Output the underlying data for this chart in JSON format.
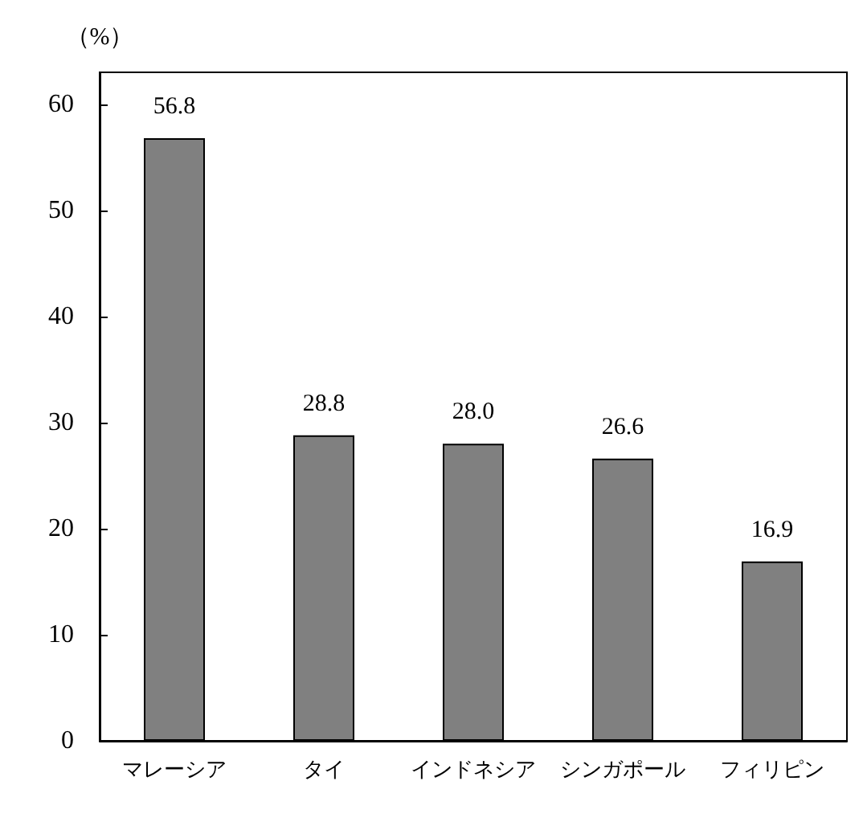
{
  "chart_data": {
    "type": "bar",
    "ylabel": "（%）",
    "categories": [
      "マレーシア",
      "タイ",
      "インドネシア",
      "シンガポール",
      "フィリピン"
    ],
    "values": [
      56.8,
      28.8,
      28.0,
      26.6,
      16.9
    ],
    "value_labels": [
      "56.8",
      "28.8",
      "28.0",
      "26.6",
      "16.9"
    ],
    "color": "#808080",
    "ylim": [
      0,
      63
    ],
    "yticks": [
      0,
      10,
      20,
      30,
      40,
      50,
      60
    ],
    "grid": false
  }
}
